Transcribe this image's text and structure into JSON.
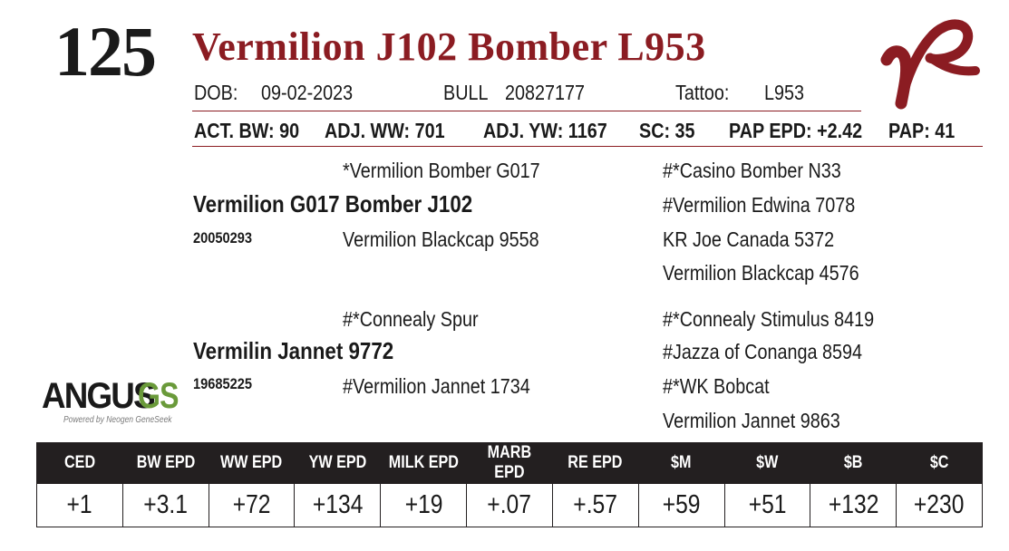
{
  "lot_number": "125",
  "animal_name": "Vermilion J102 Bomber L953",
  "info_row": {
    "dob_label": "DOB:",
    "dob_value": "09-02-2023",
    "sex": "BULL",
    "registration": "20827177",
    "tattoo_label": "Tattoo:",
    "tattoo_value": "L953"
  },
  "stats_row": {
    "act_bw": "ACT. BW: 90",
    "adj_ww": "ADJ. WW: 701",
    "adj_yw": "ADJ. YW: 1167",
    "sc": "SC: 35",
    "pap_epd": "PAP EPD: +2.42",
    "pap": "PAP: 41"
  },
  "pedigree": {
    "sire": {
      "name": "Vermilion G017 Bomber J102",
      "reg": "20050293"
    },
    "sire_sire": "*Vermilion Bomber G017",
    "sire_dam": "Vermilion Blackcap 9558",
    "sire_sire_sire": "#*Casino Bomber N33",
    "sire_sire_dam": "#Vermilion Edwina 7078",
    "sire_dam_sire": "KR Joe Canada 5372",
    "sire_dam_dam": "Vermilion Blackcap 4576",
    "dam": {
      "name": "Vermilin Jannet 9772",
      "reg": "19685225"
    },
    "dam_sire": "#*Connealy Spur",
    "dam_dam": "#Vermilion Jannet 1734",
    "dam_sire_sire": "#*Connealy Stimulus 8419",
    "dam_sire_dam": "#Jazza of Conanga 8594",
    "dam_dam_sire": "#*WK Bobcat",
    "dam_dam_dam": "Vermilion Jannet 9863"
  },
  "angus_logo": {
    "word": "ANGUS",
    "gs": "GS",
    "tagline": "Powered by Neogen GeneSeek",
    "gs_color": "#6a9a3a"
  },
  "brand_logo": {
    "icon": "vr-brand-logo",
    "color": "#8b1c22"
  },
  "epd_table": {
    "headers": [
      "CED",
      "BW EPD",
      "WW EPD",
      "YW EPD",
      "MILK EPD",
      "MARB EPD",
      "RE EPD",
      "$M",
      "$W",
      "$B",
      "$C"
    ],
    "values": [
      "+1",
      "+3.1",
      "+72",
      "+134",
      "+19",
      "+.07",
      "+.57",
      "+59",
      "+51",
      "+132",
      "+230"
    ]
  },
  "colors": {
    "accent": "#8b1c22",
    "header_bg": "#231f20"
  }
}
